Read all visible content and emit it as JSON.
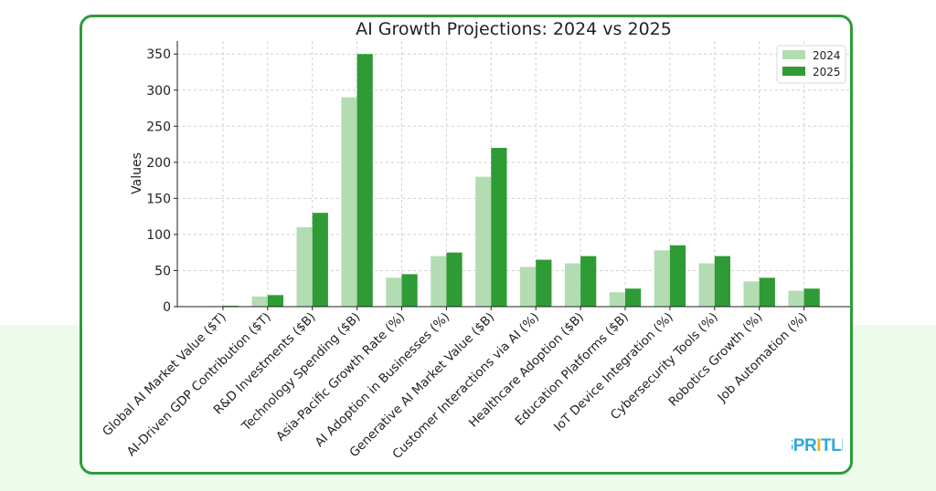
{
  "chart_data": {
    "type": "bar",
    "title": "AI Growth Projections: 2024 vs 2025",
    "xlabel": "",
    "ylabel": "Values",
    "ylim": [
      0,
      368
    ],
    "yticks": [
      0,
      50,
      100,
      150,
      200,
      250,
      300,
      350
    ],
    "grid": true,
    "legend_position": "top-right",
    "categories": [
      "Global AI Market Value ($T)",
      "AI-Driven GDP Contribution ($T)",
      "R&D Investments ($B)",
      "Technology Spending ($B)",
      "Asia-Pacific Growth Rate (%)",
      "AI Adoption in Businesses (%)",
      "Generative AI Market Value ($B)",
      "Customer Interactions via AI (%)",
      "Healthcare Adoption ($B)",
      "Education Platforms ($B)",
      "IoT Device Integration (%)",
      "Cybersecurity Tools (%)",
      "Robotics Growth (%)",
      "Job Automation (%)"
    ],
    "series": [
      {
        "name": "2024",
        "color": "#b3dcb3",
        "values": [
          0.8,
          14,
          110,
          290,
          40,
          70,
          180,
          55,
          60,
          20,
          78,
          60,
          35,
          22
        ]
      },
      {
        "name": "2025",
        "color": "#2e9b35",
        "values": [
          1.2,
          16,
          130,
          350,
          45,
          75,
          220,
          65,
          70,
          25,
          85,
          70,
          40,
          25
        ]
      }
    ]
  },
  "logo": {
    "text": "SPRITLE",
    "colors": [
      "#2aa9df",
      "#2aa9df",
      "#2aa9df",
      "#e8b318",
      "#2aa9df",
      "#2aa9df",
      "#2aa9df"
    ]
  }
}
